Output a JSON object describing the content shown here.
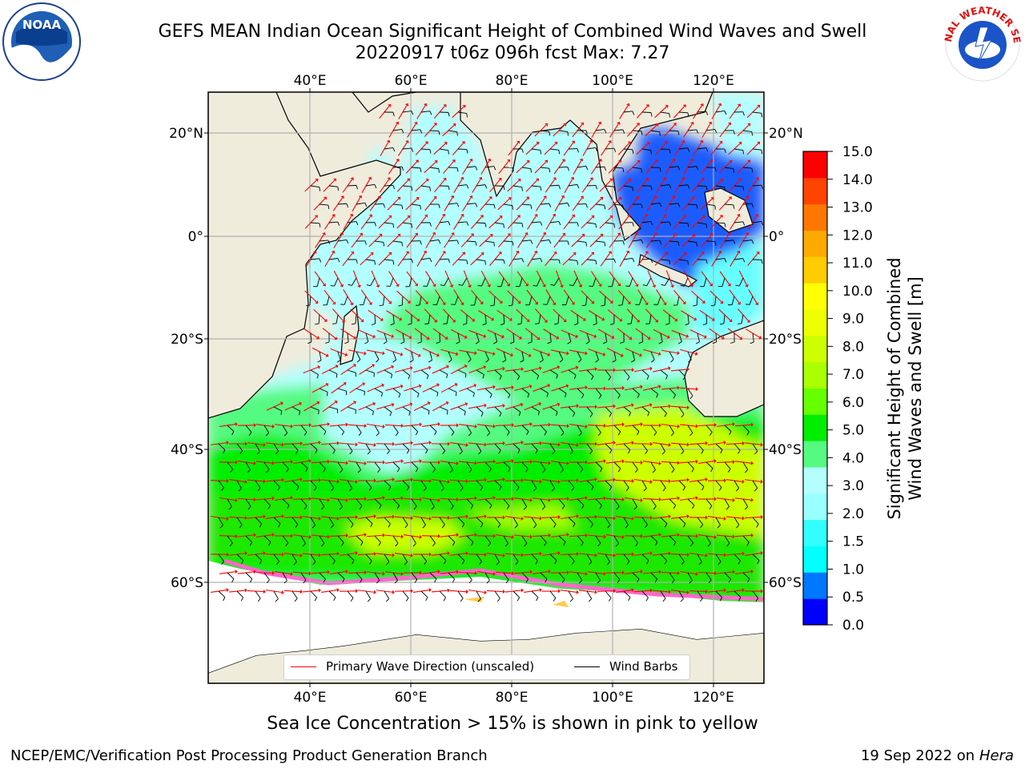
{
  "header": {
    "title_line1": "GEFS MEAN Indian Ocean Significant Height of Combined Wind Waves and Swell",
    "title_line2": "20220917 t06z 096h fcst    Max: 7.27"
  },
  "logos": {
    "noaa_text": "NOAA",
    "nws_text": "NATIONAL WEATHER SERVICE"
  },
  "map": {
    "lon_labels": [
      "40°E",
      "60°E",
      "80°E",
      "100°E",
      "120°E"
    ],
    "lat_labels": [
      "20°N",
      "0°",
      "20°S",
      "40°S",
      "60°S"
    ],
    "colors": {
      "land": "#efecdc",
      "ocean_calm": "#b3ffff",
      "ocean_mid": "#55fa80",
      "ocean_high": "#00ee00",
      "ocean_peak": "#ccff00",
      "ice": "#ffffff",
      "grid": "#b0b0b0",
      "wave_arrow": "#ff0000",
      "wind_barb": "#000000"
    }
  },
  "legend": {
    "wave_label": "Primary Wave Direction (unscaled)",
    "wind_label": "Wind Barbs",
    "wave_color": "#ff0000",
    "wind_color": "#000000"
  },
  "colorbar": {
    "label_line1": "Significant Height of Combined",
    "label_line2": "Wind Waves and Swell [m]",
    "ticks": [
      "0.0",
      "0.5",
      "1.0",
      "1.5",
      "2.0",
      "3.0",
      "4.0",
      "5.0",
      "6.0",
      "7.0",
      "8.0",
      "9.0",
      "10.0",
      "11.0",
      "12.0",
      "13.0",
      "14.0",
      "15.0"
    ],
    "colors": [
      "#0000ff",
      "#0077ff",
      "#00ffff",
      "#33ffff",
      "#99ffff",
      "#b3ffff",
      "#55fa80",
      "#00ee00",
      "#66ff00",
      "#aaff00",
      "#ccff00",
      "#eeff00",
      "#ffff00",
      "#ffcc00",
      "#ffaa00",
      "#ff7700",
      "#ff4400",
      "#ff0000"
    ]
  },
  "footer": {
    "caption": "Sea Ice Concentration > 15% is shown in pink to yellow",
    "left": "NCEP/EMC/Verification Post Processing Product Generation Branch",
    "right_prefix": "19 Sep 2022 on",
    "right_host": "Hera"
  }
}
